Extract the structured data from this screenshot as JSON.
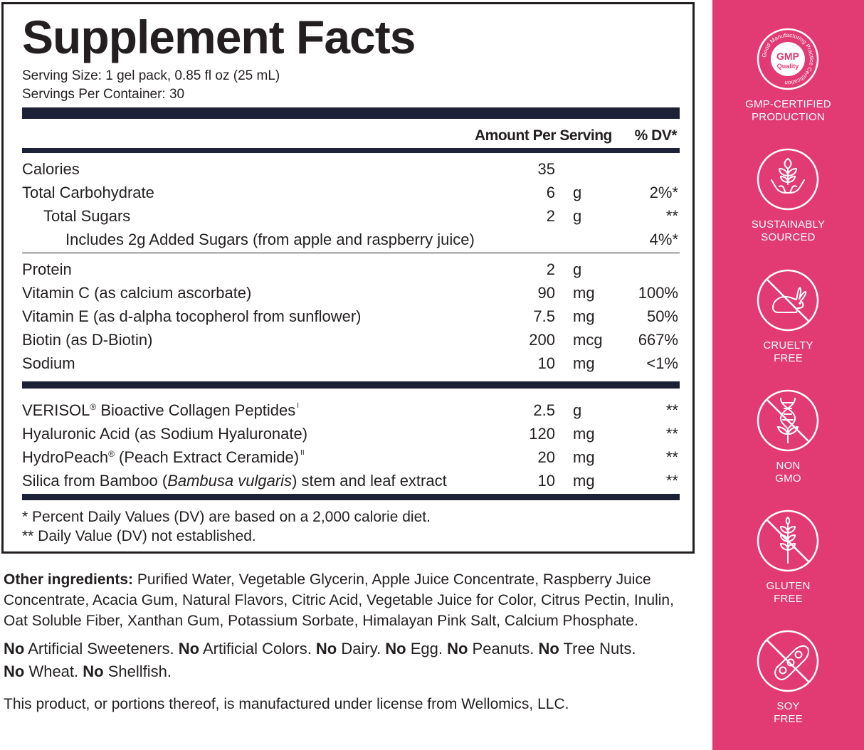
{
  "facts": {
    "title": "Supplement Facts",
    "serving_size": "Serving Size: 1 gel pack, 0.85 fl oz (25 mL)",
    "servings_per_container": "Servings Per Container: 30",
    "header_amount": "Amount Per Serving",
    "header_dv": "% DV*",
    "rows": [
      {
        "name": "Calories",
        "amount": "35",
        "unit": "",
        "dv": ""
      },
      {
        "name": "Total Carbohydrate",
        "amount": "6",
        "unit": "g",
        "dv": "2%*"
      },
      {
        "name": "Total Sugars",
        "amount": "2",
        "unit": "g",
        "dv": "**"
      },
      {
        "name": "Includes 2g Added Sugars (from apple and raspberry juice)",
        "amount": "",
        "unit": "",
        "dv": "4%*"
      },
      {
        "name": "Protein",
        "amount": "2",
        "unit": "g",
        "dv": ""
      },
      {
        "name": "Vitamin C (as calcium ascorbate)",
        "amount": "90",
        "unit": "mg",
        "dv": "100%"
      },
      {
        "name": "Vitamin E (as d-alpha tocopherol from sunflower)",
        "amount": "7.5",
        "unit": "mg",
        "dv": "50%"
      },
      {
        "name": "Biotin (as D-Biotin)",
        "amount": "200",
        "unit": "mcg",
        "dv": "667%"
      },
      {
        "name": "Sodium",
        "amount": "10",
        "unit": "mg",
        "dv": "<1%"
      }
    ],
    "rows2": [
      {
        "name_a": "VERISOL",
        "reg": "®",
        "name_b": " Bioactive Collagen Peptides",
        "note": "I",
        "amount": "2.5",
        "unit": "g",
        "dv": "**"
      },
      {
        "name_a": "Hyaluronic Acid (as Sodium Hyaluronate)",
        "reg": "",
        "name_b": "",
        "note": "",
        "amount": "120",
        "unit": "mg",
        "dv": "**"
      },
      {
        "name_a": "HydroPeach",
        "reg": "®",
        "name_b": " (Peach Extract Ceramide)",
        "note": "II",
        "amount": "20",
        "unit": "mg",
        "dv": "**"
      },
      {
        "name_a": "Silica from Bamboo (",
        "italic": "Bambusa vulgaris",
        "name_b": ") stem and leaf extract",
        "amount": "10",
        "unit": "mg",
        "dv": "**"
      }
    ],
    "footnote1": "* Percent Daily Values (DV) are based on a 2,000 calorie diet.",
    "footnote2": "** Daily Value (DV) not established."
  },
  "other": {
    "label": "Other ingredients:",
    "text": " Purified Water, Vegetable Glycerin, Apple Juice Concentrate, Raspberry Juice Concentrate, Acacia Gum, Natural Flavors, Citric Acid, Vegetable Juice for Color, Citrus Pectin, Inulin, Oat Soluble Fiber, Xanthan Gum, Potassium Sorbate, Himalayan Pink Salt, Calcium Phosphate.",
    "free_from": [
      {
        "no": "No",
        "item": " Artificial Sweeteners. "
      },
      {
        "no": "No",
        "item": " Artificial Colors. "
      },
      {
        "no": "No",
        "item": " Dairy. "
      },
      {
        "no": "No",
        "item": " Egg. "
      },
      {
        "no": "No",
        "item": " Peanuts. "
      },
      {
        "no": "No",
        "item": " Tree Nuts. "
      },
      {
        "no": "No",
        "item": " Wheat. "
      },
      {
        "no": "No",
        "item": " Shellfish."
      }
    ],
    "license": "This product, or portions thereof, is manufactured under license from Wellomics, LLC."
  },
  "sidebar": {
    "bg_color": "#e23a73",
    "badges": [
      {
        "icon": "gmp-seal-icon",
        "ring_text": "Good Manufacturing Practice Certification",
        "seal_text_1": "GMP",
        "seal_text_2": "Quality",
        "line1": "GMP-CERTIFIED",
        "line2": "PRODUCTION"
      },
      {
        "icon": "plant-in-hands-icon",
        "line1": "SUSTAINABLY",
        "line2": "SOURCED"
      },
      {
        "icon": "crossed-rabbit-icon",
        "line1": "CRUELTY",
        "line2": "FREE"
      },
      {
        "icon": "crossed-dna-icon",
        "line1": "NON",
        "line2": "GMO"
      },
      {
        "icon": "crossed-wheat-icon",
        "line1": "GLUTEN",
        "line2": "FREE"
      },
      {
        "icon": "crossed-soybean-icon",
        "line1": "SOY",
        "line2": "FREE"
      }
    ]
  }
}
